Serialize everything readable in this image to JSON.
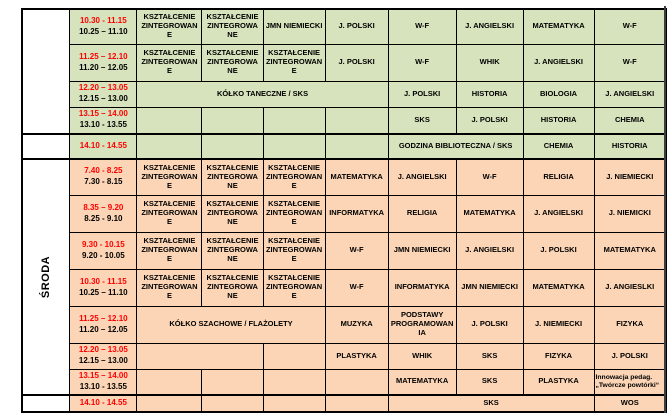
{
  "palette": {
    "green_section_bg": "#d6e3bc",
    "orange_section_bg": "#fbd5b5",
    "time_red": "#ff0000",
    "text": "#000000",
    "border": "#000000",
    "page_bg": "#ffffff"
  },
  "day_blocks": [
    {
      "label": "",
      "rows": 4
    },
    {
      "label": "",
      "rows": 1
    },
    {
      "label": "ŚRODA",
      "rows": 7
    },
    {
      "label": "",
      "rows": 1
    }
  ],
  "rows": [
    {
      "section": "green",
      "new_block": false,
      "time_red": "10.30 - 11.15",
      "time_black": "10.25 – 11.10",
      "cells": [
        {
          "text": "KSZTAŁCENIE ZINTEGROWANE"
        },
        {
          "text": "KSZTAŁCENIE ZINTEGROWANE"
        },
        {
          "text": "JMN NIEMIECKI"
        },
        {
          "text": "J. POLSKI"
        },
        {
          "text": "W-F"
        },
        {
          "text": "J. ANGIELSKI"
        },
        {
          "text": "MATEMATYKA"
        },
        {
          "text": "W-F"
        }
      ]
    },
    {
      "section": "green",
      "new_block": false,
      "time_red": "11.25 – 12.10",
      "time_black": "11.20 – 12.05",
      "cells": [
        {
          "text": "KSZTAŁCENIE ZINTEGROWANE"
        },
        {
          "text": "KSZTAŁCENIE ZINTEGROWANE"
        },
        {
          "text": "KSZTAŁCENIE ZINTEGROWANE"
        },
        {
          "text": "J. POLSKI"
        },
        {
          "text": "W-F"
        },
        {
          "text": "WHIK"
        },
        {
          "text": "J. ANGIELSKI"
        },
        {
          "text": "W-F"
        }
      ]
    },
    {
      "section": "green",
      "new_block": false,
      "time_red": "12.20 – 13.05",
      "time_black": "12.15 – 13.00",
      "cells": [
        {
          "text": "KÓŁKO TANECZNE / SKS",
          "span": 4
        },
        {
          "text": "J. POLSKI"
        },
        {
          "text": "HISTORIA"
        },
        {
          "text": "BIOLOGIA"
        },
        {
          "text": "J. ANGIELSKI"
        }
      ]
    },
    {
      "section": "green",
      "new_block": false,
      "time_red": "13.15 – 14.00",
      "time_black": "13.10 - 13.55",
      "cells": [
        {
          "text": ""
        },
        {
          "text": ""
        },
        {
          "text": ""
        },
        {
          "text": ""
        },
        {
          "text": "SKS"
        },
        {
          "text": "J. POLSKI"
        },
        {
          "text": "HISTORIA"
        },
        {
          "text": "CHEMIA"
        }
      ]
    },
    {
      "section": "green",
      "new_block": true,
      "time_red": "14.10 - 14.55",
      "time_black": null,
      "cells": [
        {
          "text": ""
        },
        {
          "text": ""
        },
        {
          "text": ""
        },
        {
          "text": ""
        },
        {
          "text": "GODZINA BIBLIOTECZNA / SKS",
          "span": 2
        },
        {
          "text": "CHEMIA"
        },
        {
          "text": "HISTORIA"
        }
      ]
    },
    {
      "section": "orange",
      "new_block": true,
      "time_red": "7.40 - 8.25",
      "time_black": "7.30 - 8.15",
      "cells": [
        {
          "text": "KSZTAŁCENIE ZINTEGROWANE"
        },
        {
          "text": "KSZTAŁCENIE ZINTEGROWANE"
        },
        {
          "text": "KSZTAŁCENIE ZINTEGROWANE"
        },
        {
          "text": "MATEMATYKA"
        },
        {
          "text": "J. ANGIELSKI"
        },
        {
          "text": "W-F"
        },
        {
          "text": "RELIGIA"
        },
        {
          "text": "J. NIEMIECKI"
        }
      ]
    },
    {
      "section": "orange",
      "new_block": false,
      "time_red": "8.35 – 9.20",
      "time_black": "8.25 - 9.10",
      "cells": [
        {
          "text": "KSZTAŁCENIE ZINTEGROWANE"
        },
        {
          "text": "KSZTAŁCENIE ZINTEGROWANE"
        },
        {
          "text": "KSZTAŁCENIE ZINTEGROWANE"
        },
        {
          "text": "INFORMATYKA"
        },
        {
          "text": "RELIGIA"
        },
        {
          "text": "MATEMATYKA"
        },
        {
          "text": "J. ANGIELSKI"
        },
        {
          "text": "J. NIEMICKI"
        }
      ]
    },
    {
      "section": "orange",
      "new_block": false,
      "time_red": "9.30 - 10.15",
      "time_black": "9.20 - 10.05",
      "cells": [
        {
          "text": "KSZTAŁCENIE ZINTEGROWANE"
        },
        {
          "text": "KSZTAŁCENIE ZINTEGROWANE"
        },
        {
          "text": "KSZTAŁCENIE ZINTEGROWANE"
        },
        {
          "text": "W-F"
        },
        {
          "text": "JMN NIEMIECKI"
        },
        {
          "text": "J. ANGIELSKI"
        },
        {
          "text": "J. POLSKI"
        },
        {
          "text": "MATEMATYKA"
        }
      ]
    },
    {
      "section": "orange",
      "new_block": false,
      "time_red": "10.30 - 11.15",
      "time_black": "10.25 – 11.10",
      "cells": [
        {
          "text": "KSZTAŁCENIE ZINTEGROWANE"
        },
        {
          "text": "KSZTAŁCENIE ZINTEGROWANE"
        },
        {
          "text": "KSZTAŁCENIE ZINTEGROWANE"
        },
        {
          "text": "W-F"
        },
        {
          "text": "INFORMATYKA"
        },
        {
          "text": "JMN NIEMIECKI"
        },
        {
          "text": "MATEMATYKA"
        },
        {
          "text": "J. ANGIESLKI"
        }
      ]
    },
    {
      "section": "orange",
      "new_block": false,
      "time_red": "11.25 – 12.10",
      "time_black": "11.20 – 12.05",
      "cells": [
        {
          "text": "KÓŁKO SZACHOWE / FLAŻOLETY",
          "span": 3
        },
        {
          "text": "MUZYKA"
        },
        {
          "text": "PODSTAWY PROGRAMOWANIA"
        },
        {
          "text": "J. POLSKI"
        },
        {
          "text": "J. NIEMIECKI"
        },
        {
          "text": "FIZYKA"
        }
      ]
    },
    {
      "section": "orange",
      "new_block": false,
      "time_red": "12.20 – 13.05",
      "time_black": "12.15 – 13.00",
      "cells": [
        {
          "text": "",
          "span": 2
        },
        {
          "text": ""
        },
        {
          "text": "PLASTYKA"
        },
        {
          "text": "WHIK"
        },
        {
          "text": "SKS"
        },
        {
          "text": "FIZYKA"
        },
        {
          "text": "J. POLSKI"
        }
      ]
    },
    {
      "section": "orange",
      "new_block": false,
      "time_red": "13.15 – 14.00",
      "time_black": "13.10 - 13.55",
      "cells": [
        {
          "text": ""
        },
        {
          "text": ""
        },
        {
          "text": ""
        },
        {
          "text": ""
        },
        {
          "text": "MATEMATYKA"
        },
        {
          "text": "SKS"
        },
        {
          "text": "PLASTYKA"
        },
        {
          "text": "Innowacja pedag. „Twórcze powtórki“",
          "note": true
        }
      ]
    },
    {
      "section": "orange",
      "new_block": true,
      "time_red": "14.10 - 14.55",
      "time_black": null,
      "cells": [
        {
          "text": ""
        },
        {
          "text": ""
        },
        {
          "text": ""
        },
        {
          "text": ""
        },
        {
          "text": "SKS",
          "span": 3
        },
        {
          "text": "WOS"
        }
      ]
    }
  ]
}
